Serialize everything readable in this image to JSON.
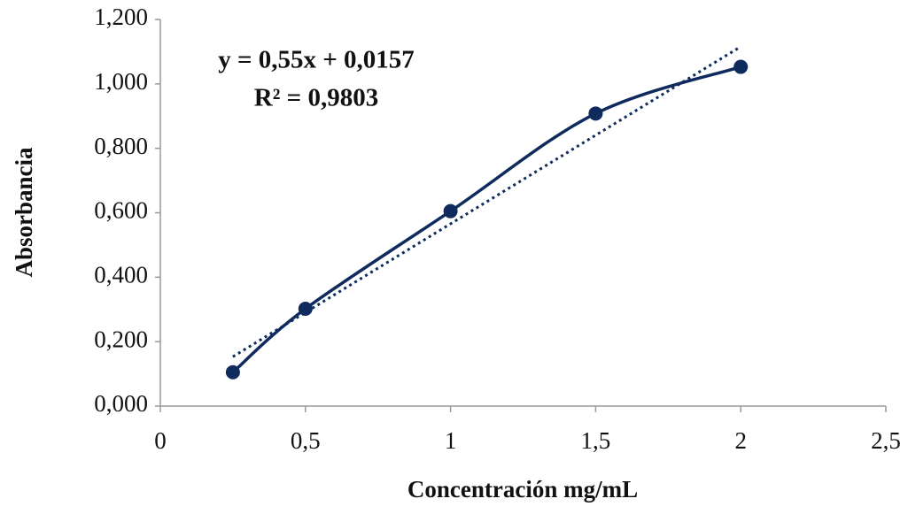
{
  "chart_data": {
    "type": "scatter",
    "x_label": "Concentración mg/mL",
    "y_label": "Absorbancia",
    "annotations": [
      "y = 0,55x + 0,0157",
      "R² = 0,9803"
    ],
    "series": [
      {
        "color": "#0f2a5c",
        "x": [
          0.25,
          0.5,
          1,
          1.5,
          2
        ],
        "values": [
          0.105,
          0.302,
          0.605,
          0.908,
          1.053
        ]
      }
    ],
    "trendline": {
      "slope": 0.55,
      "intercept": 0.0157
    },
    "xlim": [
      0,
      2.5
    ],
    "xticks": [
      0,
      {
        "value": 0.5,
        "label": "0,5"
      },
      1,
      {
        "value": 1.5,
        "label": "1,5"
      },
      2,
      {
        "value": 2.5,
        "label": "2,5"
      }
    ],
    "ylim": [
      0,
      1.2
    ],
    "yticks": [
      {
        "value": 0,
        "label": "0,000"
      },
      {
        "value": 0.2,
        "label": "0,200"
      },
      {
        "value": 0.4,
        "label": "0,400"
      },
      {
        "value": 0.6,
        "label": "0,600"
      },
      {
        "value": 0.8,
        "label": "0,800"
      },
      {
        "value": 1.0,
        "label": "1,000"
      },
      {
        "value": 1.2,
        "label": "1,200"
      }
    ]
  }
}
